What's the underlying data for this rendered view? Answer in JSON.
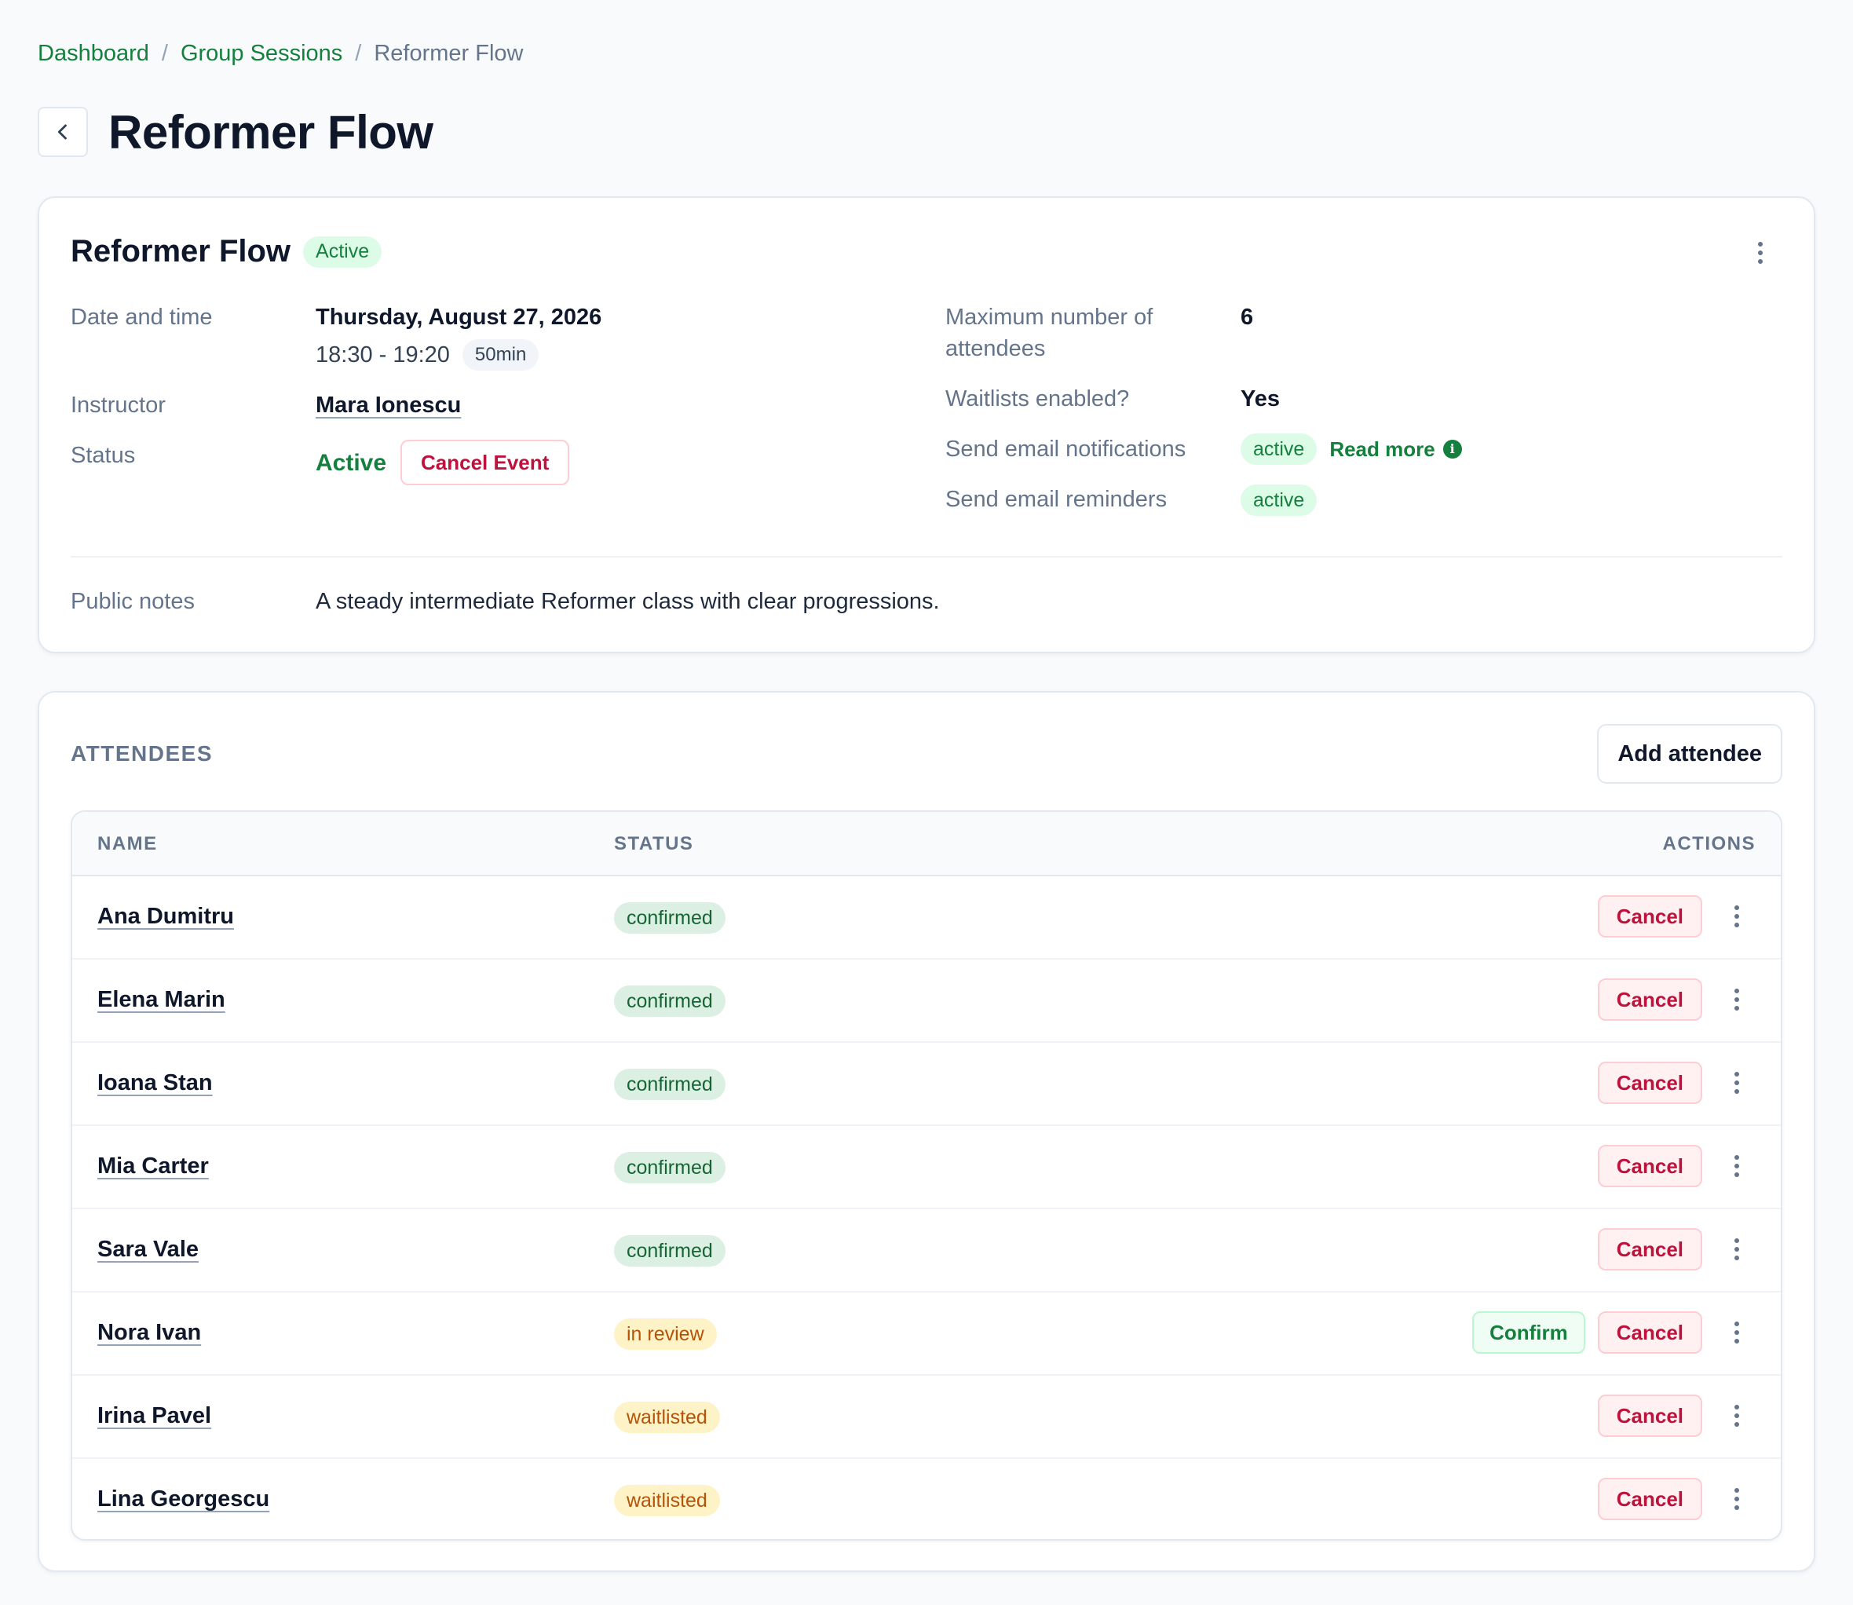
{
  "breadcrumb": {
    "items": [
      "Dashboard",
      "Group Sessions"
    ],
    "separator": "/",
    "current": "Reformer Flow"
  },
  "page": {
    "title": "Reformer Flow",
    "back_icon": "chevron-left-icon"
  },
  "details": {
    "title": "Reformer Flow",
    "status_badge": "Active",
    "menu_icon": "more-vertical-icon",
    "date_label": "Date and time",
    "date_value": "Thursday, August 27, 2026",
    "time_value": "18:30 - 19:20",
    "duration": "50min",
    "instructor_label": "Instructor",
    "instructor_value": "Mara Ionescu",
    "status_label": "Status",
    "status_value": "Active",
    "cancel_event_label": "Cancel Event",
    "max_label": "Maximum number of attendees",
    "max_value": "6",
    "waitlist_label": "Waitlists enabled?",
    "waitlist_value": "Yes",
    "notif_label": "Send email notifications",
    "notif_value": "active",
    "read_more": "Read more",
    "reminders_label": "Send email reminders",
    "reminders_value": "active",
    "notes_label": "Public notes",
    "notes_value": "A steady intermediate Reformer class with clear progressions."
  },
  "attendees": {
    "section_label": "ATTENDEES",
    "add_label": "Add attendee",
    "columns": [
      "NAME",
      "STATUS",
      "ACTIONS"
    ],
    "cancel_label": "Cancel",
    "confirm_label": "Confirm",
    "rows": [
      {
        "name": "Ana Dumitru",
        "status": "confirmed"
      },
      {
        "name": "Elena Marin",
        "status": "confirmed"
      },
      {
        "name": "Ioana Stan",
        "status": "confirmed"
      },
      {
        "name": "Mia Carter",
        "status": "confirmed"
      },
      {
        "name": "Sara Vale",
        "status": "confirmed"
      },
      {
        "name": "Nora Ivan",
        "status": "in review"
      },
      {
        "name": "Irina Pavel",
        "status": "waitlisted"
      },
      {
        "name": "Lina Georgescu",
        "status": "waitlisted"
      }
    ]
  },
  "colors": {
    "accent": "#15803d",
    "danger": "#be123c",
    "warning": "#b45309",
    "background": "#f8fafc"
  }
}
